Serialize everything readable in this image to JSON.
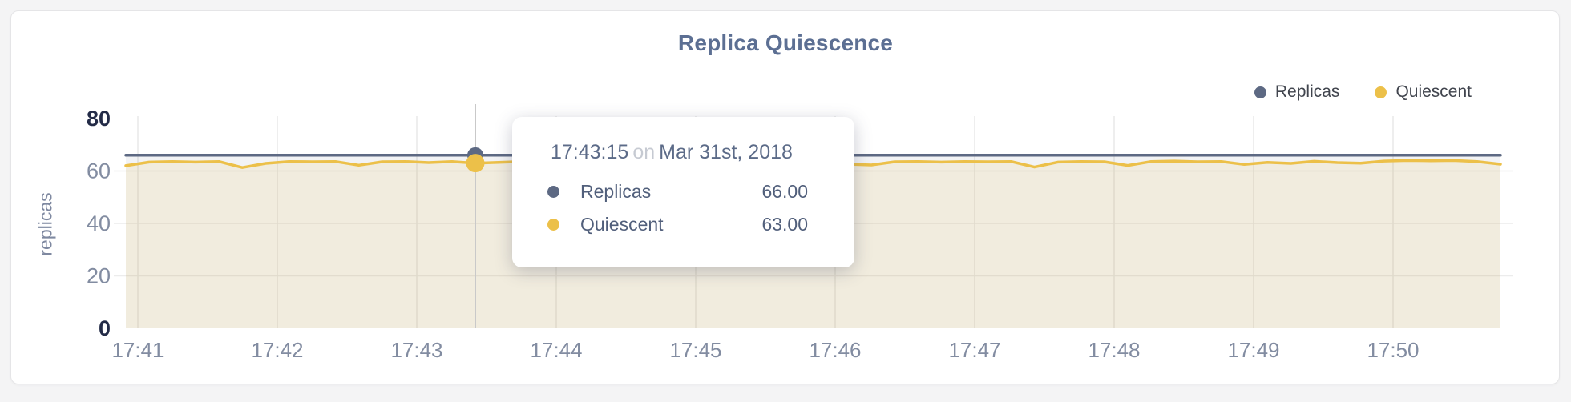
{
  "chart_data": {
    "type": "line",
    "title": "Replica Quiescence",
    "xlabel": "",
    "ylabel": "replicas",
    "ylim": [
      0,
      80
    ],
    "y_tick_labels": [
      "0",
      "20",
      "40",
      "60",
      "80"
    ],
    "y_tick_values": [
      0,
      20,
      40,
      60,
      80
    ],
    "x_tick_labels": [
      "17:41",
      "17:42",
      "17:43",
      "17:44",
      "17:45",
      "17:46",
      "17:47",
      "17:48",
      "17:49",
      "17:50"
    ],
    "grid": true,
    "legend_position": "top-right",
    "series": [
      {
        "name": "Replicas",
        "color": "#5d6983",
        "fill_color": "rgba(93,105,131,0.08)",
        "values": [
          66,
          66,
          66,
          66,
          66,
          66,
          66,
          66,
          66,
          66,
          66,
          66,
          66,
          66,
          66,
          66,
          66,
          66,
          66,
          66,
          66,
          66,
          66,
          66,
          66,
          66,
          66,
          66,
          66,
          66,
          66,
          66,
          66,
          66,
          66,
          66,
          66,
          66,
          66,
          66,
          66,
          66,
          66,
          66,
          66,
          66,
          66,
          66,
          66,
          66,
          66,
          66,
          66,
          66,
          66,
          66,
          66,
          66,
          66,
          66
        ]
      },
      {
        "name": "Quiescent",
        "color": "#ecc049",
        "fill_color": "rgba(236,192,73,0.13)",
        "values": [
          62.0,
          63.4,
          63.6,
          63.4,
          63.6,
          61.3,
          62.9,
          63.6,
          63.5,
          63.6,
          62.2,
          63.5,
          63.6,
          63.2,
          63.6,
          63.0,
          63.3,
          63.6,
          63.2,
          63.6,
          63.4,
          63.6,
          62.9,
          63.5,
          63.6,
          63.3,
          63.6,
          63.5,
          63.3,
          63.6,
          63.4,
          62.6,
          62.3,
          63.5,
          63.6,
          63.4,
          63.6,
          63.5,
          63.6,
          61.5,
          63.4,
          63.6,
          63.5,
          62.1,
          63.6,
          63.8,
          63.5,
          63.6,
          62.5,
          63.3,
          62.9,
          63.7,
          63.2,
          63.0,
          63.8,
          64.0,
          63.9,
          64.0,
          63.6,
          62.6
        ]
      }
    ],
    "hover_point": {
      "time": "17:43:15",
      "values": {
        "Replicas": 66,
        "Quiescent": 63
      }
    }
  },
  "tooltip": {
    "time": "17:43:15",
    "conjunction": "on",
    "date": "Mar 31st, 2018",
    "rows": [
      {
        "label": "Replicas",
        "value": "66.00"
      },
      {
        "label": "Quiescent",
        "value": "63.00"
      }
    ]
  }
}
